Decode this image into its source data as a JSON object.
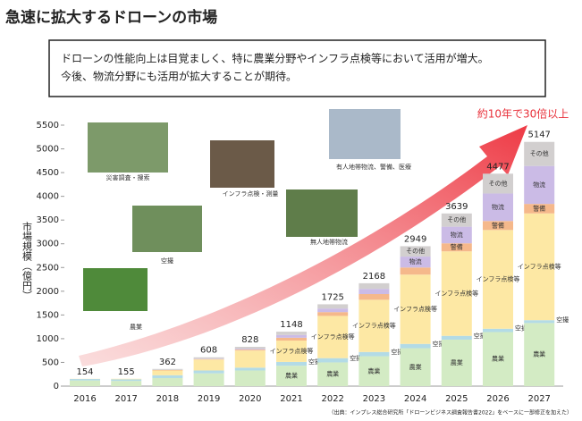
{
  "chart_data": {
    "type": "bar",
    "stacked": true,
    "title": "急速に拡大するドローンの市場",
    "subtitle": [
      "ドローンの性能向上は目覚ましく、特に農業分野やインフラ点検等において活用が増大。",
      "今後、物流分野にも活用が拡大することが期待。"
    ],
    "y_label": "市場規模（億円）",
    "annotation": "約10年で30倍以上",
    "source": "（出典：インプレス総合研究所「ドローンビジネス調査報告書2022」をベースに一部修正を加えた）",
    "photo_captions": [
      "災害調査・捜索",
      "空撮",
      "農業",
      "インフラ点検・測量",
      "無人地帯物流",
      "有人地帯物流、警備、医療"
    ],
    "categories": [
      "2016",
      "2017",
      "2018",
      "2019",
      "2020",
      "2021",
      "2022",
      "2023",
      "2024",
      "2025",
      "2026",
      "2027"
    ],
    "totals": [
      154,
      155,
      362,
      608,
      828,
      1148,
      1725,
      2168,
      2949,
      3639,
      4477,
      5147
    ],
    "series": [
      {
        "name": "農業",
        "color": "#d3ebc4",
        "values": [
          120,
          110,
          170,
          270,
          330,
          430,
          500,
          630,
          800,
          980,
          1140,
          1330
        ]
      },
      {
        "name": "空撮",
        "color": "#b3dbe6",
        "values": [
          30,
          35,
          60,
          60,
          60,
          80,
          90,
          90,
          90,
          80,
          70,
          60
        ]
      },
      {
        "name": "インフラ点検等",
        "color": "#fde8a4",
        "values": [
          4,
          10,
          100,
          230,
          360,
          450,
          890,
          1100,
          1460,
          1780,
          2080,
          2250
        ]
      },
      {
        "name": "警備",
        "color": "#f5b88b",
        "values": [
          0,
          0,
          10,
          10,
          20,
          60,
          80,
          120,
          150,
          170,
          190,
          200
        ]
      },
      {
        "name": "物流",
        "color": "#cbbbe6",
        "values": [
          0,
          0,
          2,
          8,
          18,
          58,
          75,
          110,
          230,
          350,
          580,
          800
        ]
      },
      {
        "name": "その他",
        "color": "#d2cfcf",
        "values": [
          0,
          0,
          20,
          30,
          40,
          70,
          90,
          118,
          219,
          279,
          417,
          507
        ]
      }
    ],
    "ylim": [
      0,
      5500
    ],
    "yticks": [
      0,
      500,
      1000,
      1500,
      2000,
      2500,
      3000,
      3500,
      4000,
      4500,
      5000,
      5500
    ]
  }
}
